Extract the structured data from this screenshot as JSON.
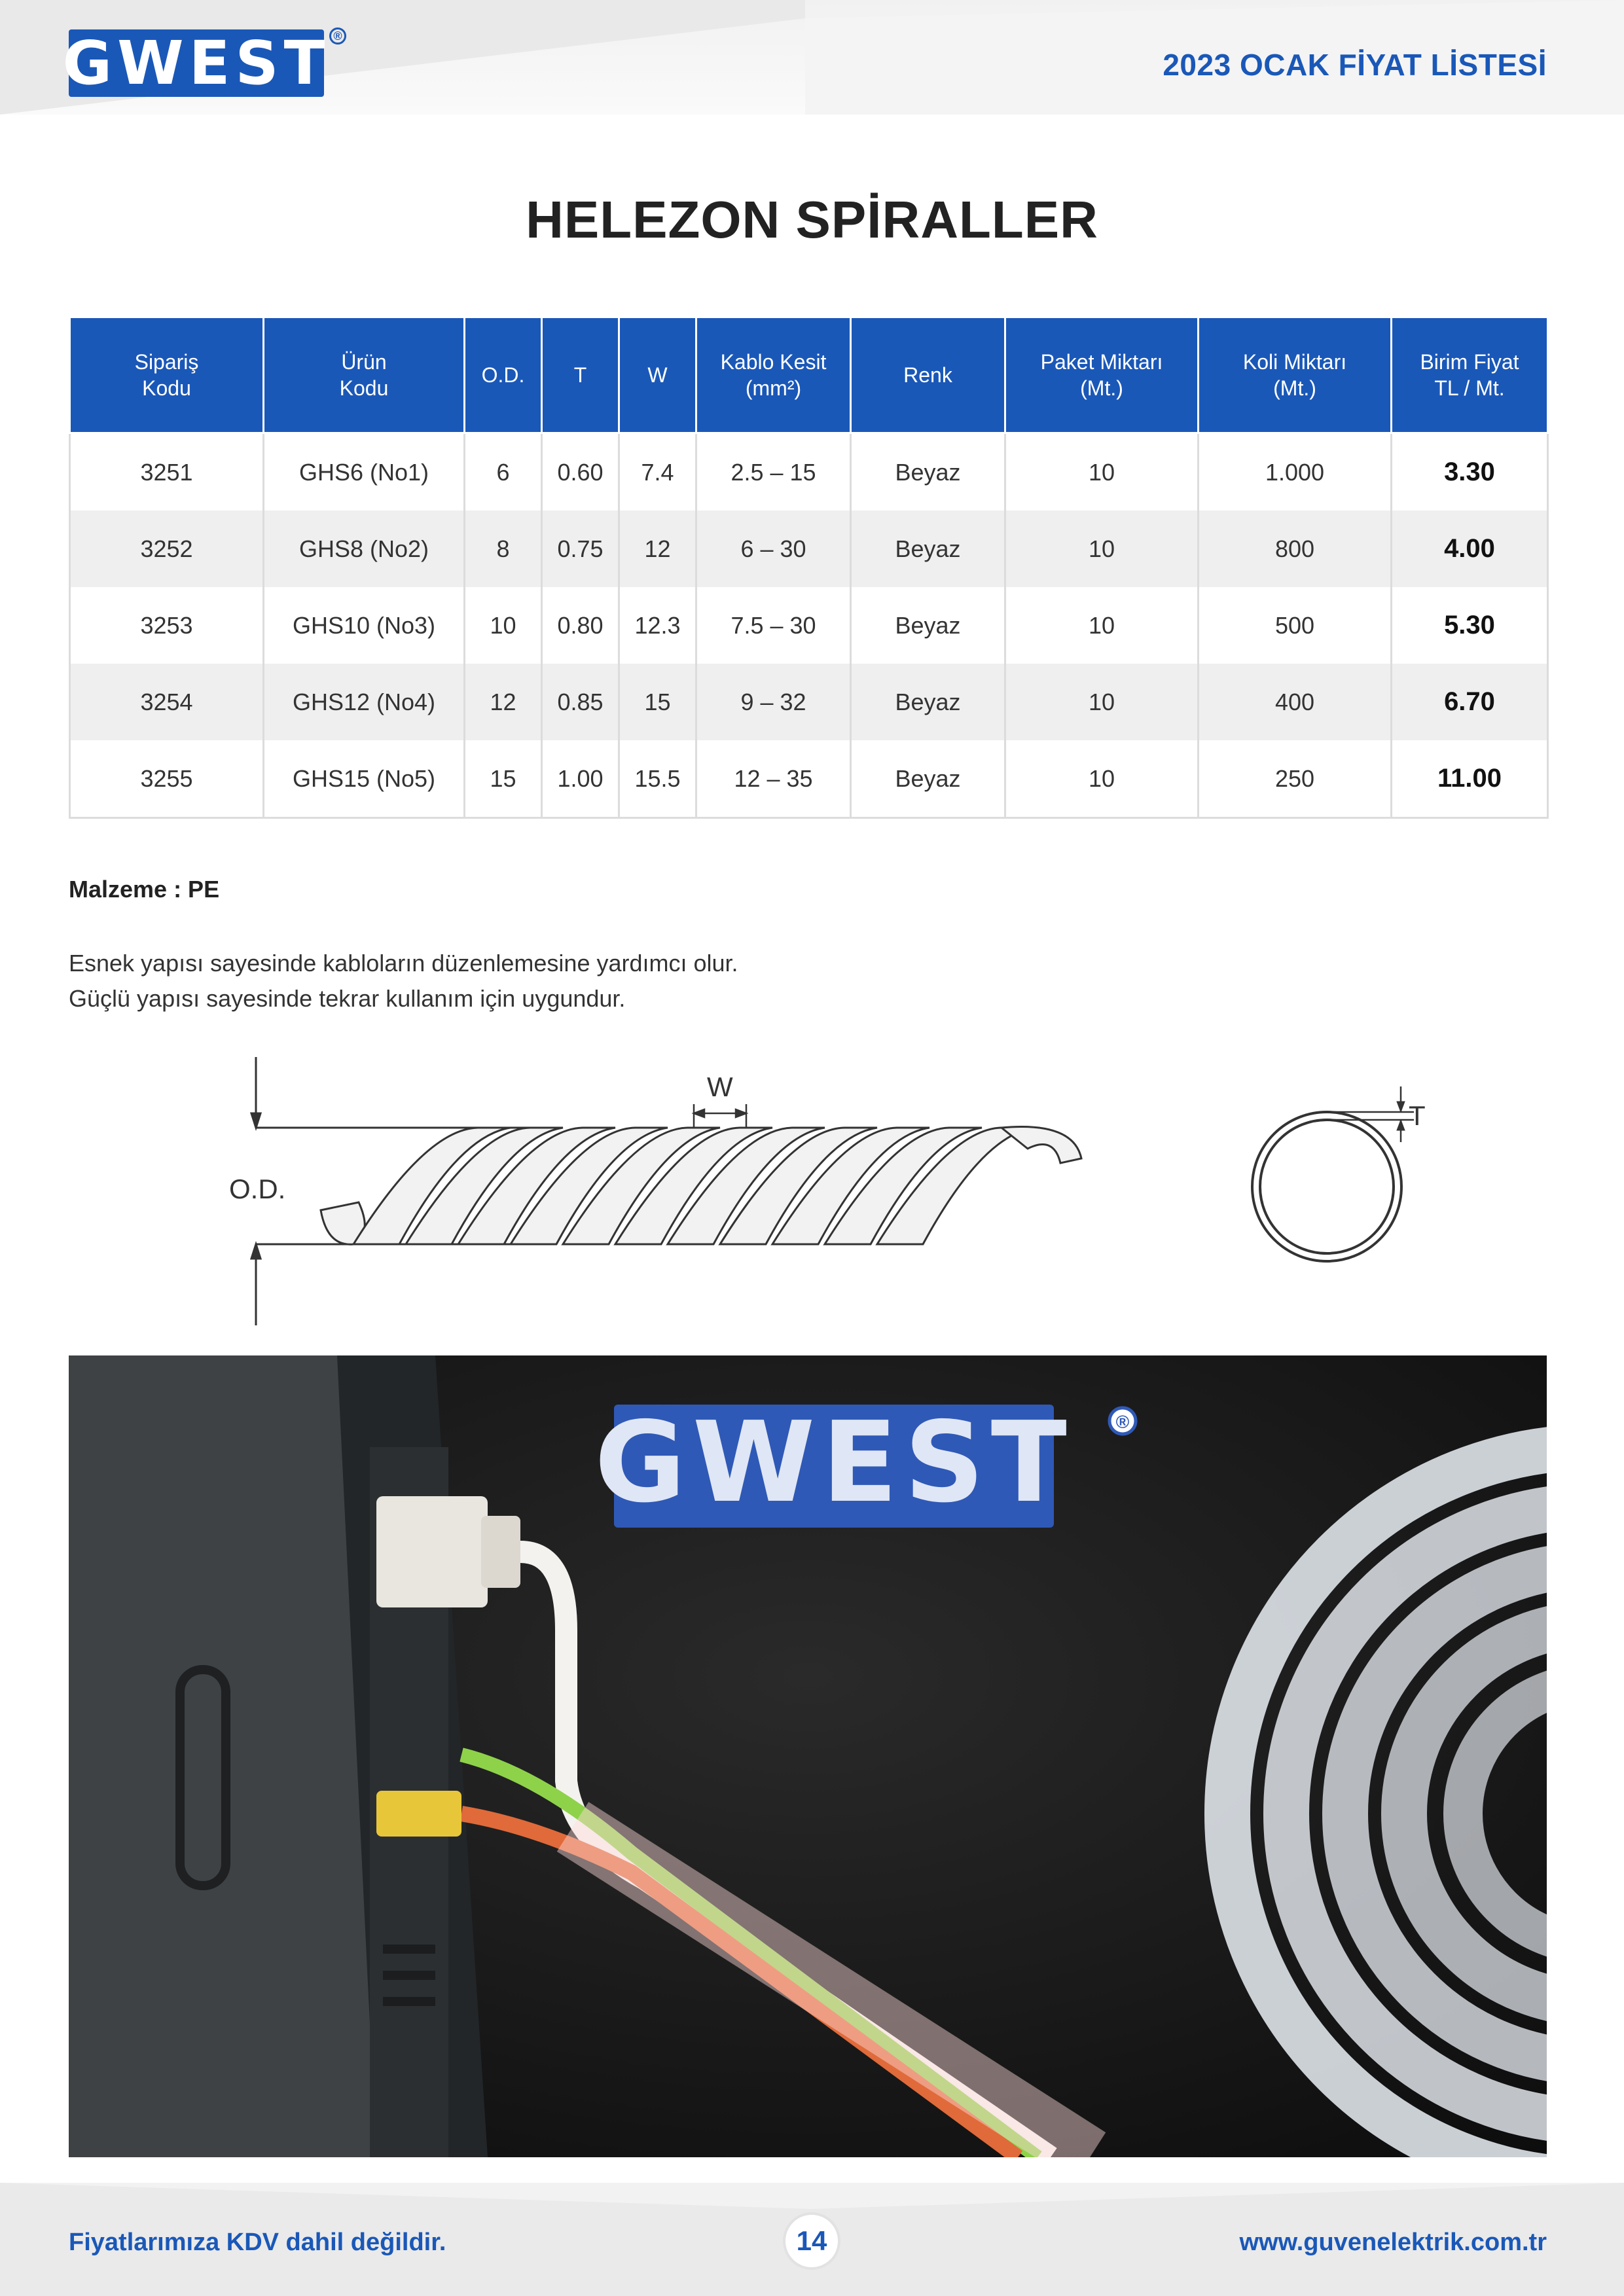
{
  "header": {
    "logo_text": "GWEST",
    "registered_mark": "®",
    "title": "2023 OCAK FİYAT LİSTESİ"
  },
  "page_title": "HELEZON SPİRALLER",
  "table": {
    "headers": [
      [
        "Sipariş",
        "Kodu"
      ],
      [
        "Ürün",
        "Kodu"
      ],
      [
        "O.D."
      ],
      [
        "T"
      ],
      [
        "W"
      ],
      [
        "Kablo Kesit",
        "(mm²)"
      ],
      [
        "Renk"
      ],
      [
        "Paket Miktarı",
        "(Mt.)"
      ],
      [
        "Koli Miktarı",
        "(Mt.)"
      ],
      [
        "Birim Fiyat",
        "TL / Mt."
      ]
    ],
    "rows": [
      [
        "3251",
        "GHS6 (No1)",
        "6",
        "0.60",
        "7.4",
        "2.5 – 15",
        "Beyaz",
        "10",
        "1.000",
        "3.30"
      ],
      [
        "3252",
        "GHS8 (No2)",
        "8",
        "0.75",
        "12",
        "6 – 30",
        "Beyaz",
        "10",
        "800",
        "4.00"
      ],
      [
        "3253",
        "GHS10 (No3)",
        "10",
        "0.80",
        "12.3",
        "7.5 – 30",
        "Beyaz",
        "10",
        "500",
        "5.30"
      ],
      [
        "3254",
        "GHS12 (No4)",
        "12",
        "0.85",
        "15",
        "9 – 32",
        "Beyaz",
        "10",
        "400",
        "6.70"
      ],
      [
        "3255",
        "GHS15 (No5)",
        "15",
        "1.00",
        "15.5",
        "12 – 35",
        "Beyaz",
        "10",
        "250",
        "11.00"
      ]
    ]
  },
  "material": "Malzeme : PE",
  "description": [
    "Esnek yapısı sayesinde kabloların düzenlemesine yardımcı olur.",
    "Güçlü yapısı sayesinde tekrar kullanım için uygundur."
  ],
  "diagram": {
    "label_od": "O.D.",
    "label_w": "W",
    "label_t": "T"
  },
  "photo": {
    "logo_text": "GWEST",
    "registered_mark": "®"
  },
  "footer": {
    "left_text": "Fiyatlarımıza KDV dahil değildir.",
    "page_number": "14",
    "right_text": "www.guvenelektrik.com.tr"
  },
  "colors": {
    "brand_blue": "#1a58b8",
    "row_alt": "#efefef"
  }
}
